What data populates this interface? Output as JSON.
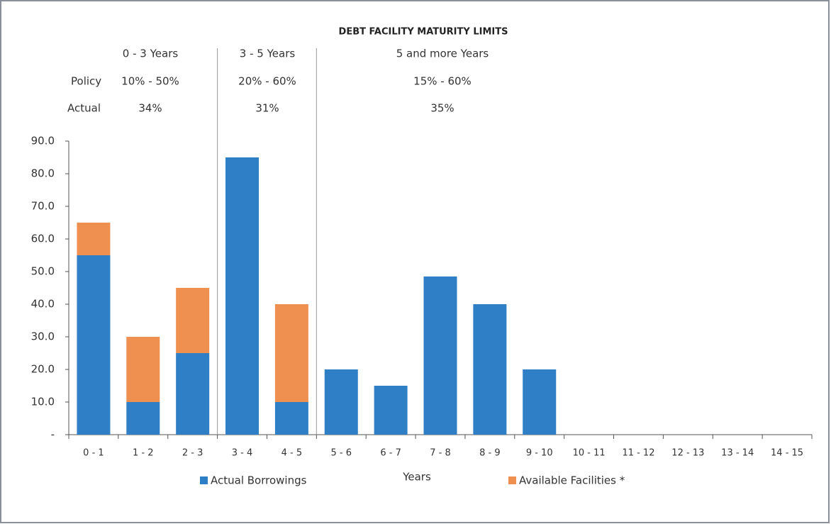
{
  "chart_data": {
    "type": "stacked_bar",
    "title": "DEBT FACILITY MATURITY LIMITS",
    "period_table": {
      "row_labels": [
        "Policy",
        "Actual"
      ],
      "periods": [
        {
          "label": "0 - 3 Years",
          "policy": "10% - 50%",
          "actual": "34%"
        },
        {
          "label": "3 - 5 Years",
          "policy": "20% - 60%",
          "actual": "31%"
        },
        {
          "label": "5 and more Years",
          "policy": "15% - 60%",
          "actual": "35%"
        }
      ]
    },
    "x_label": "Years",
    "categories": [
      "0 - 1",
      "1 - 2",
      "2 - 3",
      "3 - 4",
      "4 - 5",
      "5 - 6",
      "6 - 7",
      "7 - 8",
      "8 - 9",
      "9 - 10",
      "10 - 11",
      "11 - 12",
      "12 - 13",
      "13 - 14",
      "14 - 15"
    ],
    "series": [
      {
        "name": "Actual Borrowings",
        "color": "#2f7fc6",
        "values": [
          55,
          10,
          25,
          85,
          10,
          20,
          15,
          48.5,
          40,
          20,
          0,
          0,
          0,
          0,
          0
        ]
      },
      {
        "name": "Available Facilities *",
        "color": "#ef8f50",
        "values": [
          10,
          20,
          20,
          0,
          30,
          0,
          0,
          0,
          0,
          0,
          0,
          0,
          0,
          0,
          0
        ]
      }
    ],
    "ylim": [
      0,
      90
    ],
    "yticks": [
      {
        "value": 0,
        "label": "-"
      },
      {
        "value": 10,
        "label": "10.0"
      },
      {
        "value": 20,
        "label": "20.0"
      },
      {
        "value": 30,
        "label": "30.0"
      },
      {
        "value": 40,
        "label": "40.0"
      },
      {
        "value": 50,
        "label": "50.0"
      },
      {
        "value": 60,
        "label": "60.0"
      },
      {
        "value": 70,
        "label": "70.0"
      },
      {
        "value": 80,
        "label": "80.0"
      },
      {
        "value": 90,
        "label": "90.0"
      }
    ],
    "grid": false,
    "legend": "bottom"
  }
}
